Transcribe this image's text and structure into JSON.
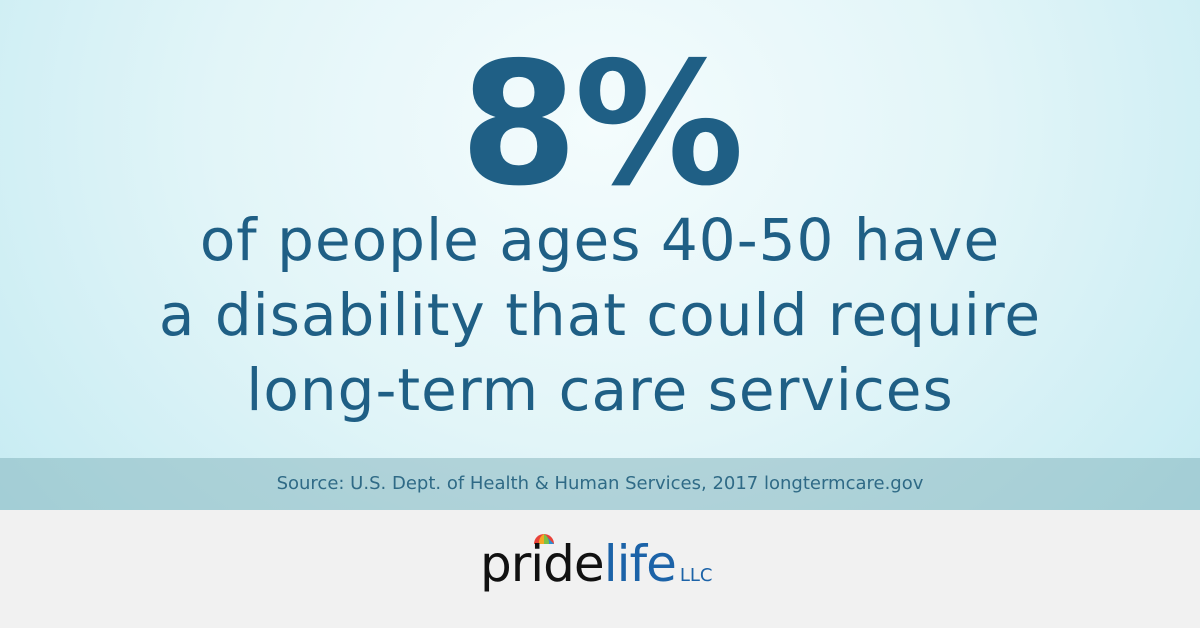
{
  "stat": {
    "figure": "8%",
    "lines": [
      "of people ages 40-50 have",
      "a disability that could require",
      "long-term care services"
    ]
  },
  "source": "Source: U.S. Dept. of Health & Human Services, 2017 longtermcare.gov",
  "logo": {
    "part1": "pride",
    "part2": "life",
    "suffix": "LLC"
  }
}
